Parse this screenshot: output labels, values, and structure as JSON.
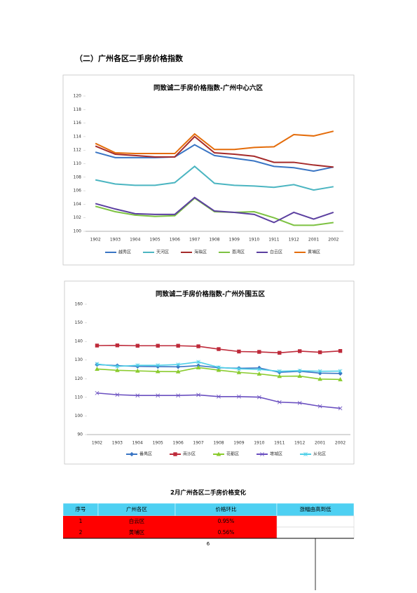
{
  "heading": "（二）广州各区二手房价格指数",
  "chart_data": [
    {
      "type": "line",
      "title": "同致诚二手房价格指数-广州中心六区",
      "categories": [
        "1902",
        "1903",
        "1904",
        "1905",
        "1906",
        "1907",
        "1908",
        "1909",
        "1910",
        "1911",
        "1912",
        "2001",
        "2002"
      ],
      "ylim": [
        100,
        120
      ],
      "yticks": [
        100,
        102,
        104,
        106,
        108,
        110,
        112,
        114,
        116,
        118,
        120
      ],
      "grid": false,
      "legend": "bottom",
      "series": [
        {
          "name": "越秀区",
          "color": "#3a75c4",
          "values": [
            111.7,
            110.9,
            110.9,
            110.9,
            111.0,
            112.8,
            111.2,
            110.8,
            110.4,
            109.6,
            109.4,
            108.9,
            109.5
          ]
        },
        {
          "name": "天河区",
          "color": "#4bb5c1",
          "values": [
            107.6,
            107.0,
            106.8,
            106.8,
            107.2,
            109.6,
            107.1,
            106.8,
            106.7,
            106.5,
            106.9,
            106.1,
            106.6
          ]
        },
        {
          "name": "海珠区",
          "color": "#a52a2a",
          "values": [
            112.6,
            111.4,
            111.2,
            111.0,
            111.0,
            114.0,
            111.6,
            111.4,
            111.1,
            110.2,
            110.2,
            109.8,
            109.5
          ]
        },
        {
          "name": "荔湾区",
          "color": "#7dc242",
          "values": [
            103.7,
            102.9,
            102.4,
            102.2,
            102.3,
            104.9,
            102.9,
            102.8,
            102.9,
            102.0,
            100.9,
            100.9,
            101.3
          ]
        },
        {
          "name": "白云区",
          "color": "#5b3fa0",
          "values": [
            104.1,
            103.3,
            102.6,
            102.5,
            102.5,
            105.0,
            103.0,
            102.8,
            102.5,
            101.3,
            102.8,
            101.8,
            102.8
          ]
        },
        {
          "name": "黄埔区",
          "color": "#e46c0a",
          "values": [
            113.0,
            111.6,
            111.5,
            111.5,
            111.5,
            114.4,
            112.1,
            112.1,
            112.4,
            112.5,
            114.3,
            114.1,
            114.8
          ]
        }
      ]
    },
    {
      "type": "line",
      "title": "同致诚二手房价格指数-广州外围五区",
      "categories": [
        "1902",
        "1903",
        "1904",
        "1905",
        "1906",
        "1907",
        "1908",
        "1909",
        "1910",
        "1911",
        "1912",
        "2001",
        "2002"
      ],
      "ylim": [
        90,
        160
      ],
      "yticks": [
        90,
        100,
        110,
        120,
        130,
        140,
        150,
        160
      ],
      "grid": false,
      "legend": "bottom",
      "series": [
        {
          "name": "番禺区",
          "color": "#3a75c4",
          "marker": "diamond",
          "values": [
            127.6,
            127.0,
            126.6,
            126.5,
            126.4,
            127.0,
            125.9,
            125.6,
            125.8,
            123.4,
            124.0,
            123.0,
            122.8
          ]
        },
        {
          "name": "南沙区",
          "color": "#be2a3a",
          "marker": "square",
          "values": [
            137.8,
            137.9,
            137.7,
            137.7,
            137.7,
            137.4,
            135.9,
            134.6,
            134.4,
            133.9,
            134.8,
            134.2,
            134.9
          ]
        },
        {
          "name": "花都区",
          "color": "#8acb2e",
          "marker": "triangle",
          "values": [
            125.2,
            124.5,
            124.2,
            123.9,
            123.8,
            126.0,
            124.6,
            123.4,
            122.6,
            121.3,
            121.4,
            119.8,
            119.6
          ]
        },
        {
          "name": "增城区",
          "color": "#6a4fc0",
          "marker": "x",
          "values": [
            112.3,
            111.4,
            111.0,
            111.0,
            111.0,
            111.3,
            110.4,
            110.4,
            110.1,
            107.4,
            107.0,
            105.2,
            104.1
          ]
        },
        {
          "name": "从化区",
          "color": "#4fd0e8",
          "marker": "star",
          "values": [
            127.9,
            126.6,
            127.2,
            127.2,
            127.6,
            129.0,
            126.1,
            125.3,
            125.0,
            124.0,
            124.3,
            124.0,
            124.1
          ]
        }
      ]
    }
  ],
  "table": {
    "title": "2月广州各区二手房价格变化",
    "header": [
      "序号",
      "广州各区",
      "价格环比",
      "涨幅由高到低"
    ],
    "rows": [
      [
        "1",
        "白云区",
        "0.95%"
      ],
      [
        "2",
        "黄埔区",
        "0.56%"
      ]
    ]
  },
  "page_number": "6"
}
